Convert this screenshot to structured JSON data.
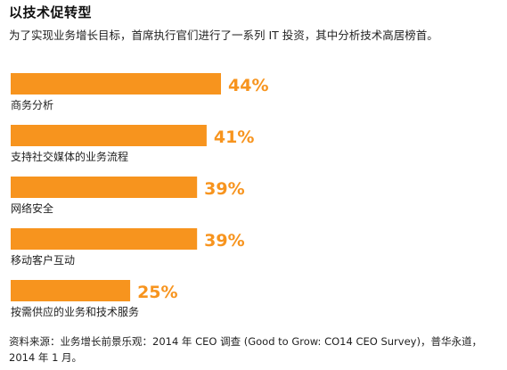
{
  "chart_data": {
    "type": "bar",
    "orientation": "horizontal",
    "title": "以技术促转型",
    "subtitle": "为了实现业务增长目标，首席执行官们进行了一系列 IT 投资，其中分析技术高居榜首。",
    "categories": [
      "商务分析",
      "支持社交媒体的业务流程",
      "网络安全",
      "移动客户互动",
      "按需供应的业务和技术服务"
    ],
    "values": [
      44,
      41,
      39,
      39,
      25
    ],
    "value_labels": [
      "44%",
      "41%",
      "39%",
      "39%",
      "25%"
    ],
    "unit": "%",
    "bar_color": "#F7941E",
    "grid": false,
    "source": "资料来源：业务增长前景乐观：2014 年 CEO 调查 (Good to Grow: CO14 CEO Survey)，普华永道，2014 年 1 月。"
  }
}
